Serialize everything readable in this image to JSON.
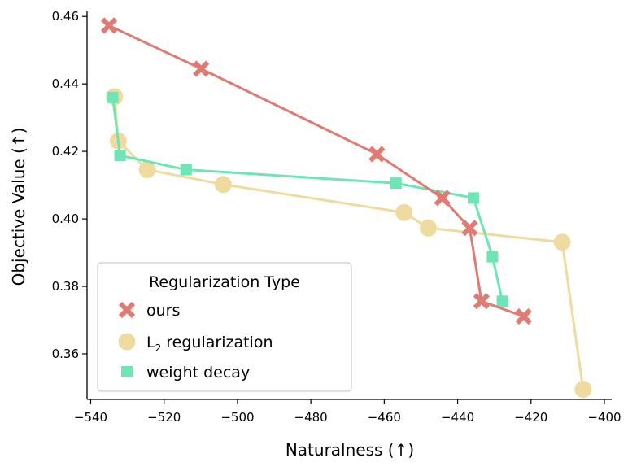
{
  "chart_data": {
    "type": "line",
    "title": "",
    "xlabel": "Naturalness (↑)",
    "ylabel": "Objective Value (↑)",
    "xlim": [
      -541,
      -398
    ],
    "ylim": [
      0.3465,
      0.4615
    ],
    "xticks": [
      -540,
      -520,
      -500,
      -480,
      -460,
      -440,
      -420,
      -400
    ],
    "xtick_labels": [
      "−540",
      "−520",
      "−500",
      "−480",
      "−460",
      "−440",
      "−420",
      "−400"
    ],
    "yticks": [
      0.36,
      0.38,
      0.4,
      0.42,
      0.44,
      0.46
    ],
    "ytick_labels": [
      "0.36",
      "0.38",
      "0.40",
      "0.42",
      "0.44",
      "0.46"
    ],
    "legend_title": "Regularization Type",
    "legend_position": "lower-left",
    "series": [
      {
        "name": "ours",
        "marker": "x",
        "color": "#e07b74",
        "points": [
          [
            -535,
            0.4573
          ],
          [
            -509.9,
            0.4445
          ],
          [
            -462,
            0.4192
          ],
          [
            -444.2,
            0.4062
          ],
          [
            -436.7,
            0.3973
          ],
          [
            -433.5,
            0.3756
          ],
          [
            -422,
            0.3711
          ]
        ]
      },
      {
        "name_main": "L",
        "name_sub": "2",
        "name_rest": " regularization",
        "marker": "circle",
        "color": "#efdba0",
        "points": [
          [
            -533.5,
            0.4362
          ],
          [
            -532.5,
            0.4231
          ],
          [
            -524.6,
            0.4146
          ],
          [
            -503.9,
            0.4102
          ],
          [
            -454.6,
            0.4019
          ],
          [
            -448,
            0.3973
          ],
          [
            -411.5,
            0.3931
          ],
          [
            -405.8,
            0.3495
          ]
        ]
      },
      {
        "name": "weight decay",
        "marker": "square",
        "color": "#6ee5b5",
        "points": [
          [
            -534,
            0.436
          ],
          [
            -532,
            0.4188
          ],
          [
            -514,
            0.4146
          ],
          [
            -456.8,
            0.4106
          ],
          [
            -435.7,
            0.4062
          ],
          [
            -430.5,
            0.3888
          ],
          [
            -427.8,
            0.3756
          ]
        ]
      }
    ]
  }
}
